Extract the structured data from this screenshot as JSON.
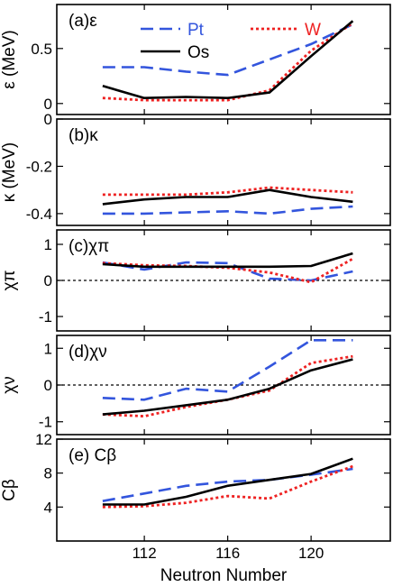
{
  "colors": {
    "Pt": "#3355dd",
    "W": "#ee2222",
    "Os": "#000000"
  },
  "legend": {
    "pt": "Pt",
    "w": "W",
    "os": "Os"
  },
  "xlabel": "Neutron Number",
  "xticks": [
    "112",
    "116",
    "120"
  ],
  "chart_data": [
    {
      "type": "line",
      "panel_label": "(a)ε",
      "ylabel": "ε (MeV)",
      "xlim": [
        107.8,
        123.8
      ],
      "ylim": [
        -0.1,
        0.9
      ],
      "yticks": [
        "0",
        "0.5"
      ],
      "zero_line": false,
      "series": [
        {
          "name": "Pt",
          "x": [
            110,
            112,
            114,
            116,
            118,
            120,
            122
          ],
          "values": [
            0.33,
            0.33,
            0.29,
            0.26,
            0.4,
            0.54,
            0.72
          ]
        },
        {
          "name": "W",
          "x": [
            110,
            112,
            114,
            116,
            118,
            120,
            122
          ],
          "values": [
            0.05,
            0.03,
            0.03,
            0.03,
            0.12,
            0.48,
            0.73
          ]
        },
        {
          "name": "Os",
          "x": [
            110,
            112,
            114,
            116,
            118,
            120,
            122
          ],
          "values": [
            0.16,
            0.05,
            0.06,
            0.05,
            0.1,
            0.43,
            0.75
          ]
        }
      ]
    },
    {
      "type": "line",
      "panel_label": "(b)κ",
      "ylabel": "κ (MeV)",
      "xlim": [
        107.8,
        123.8
      ],
      "ylim": [
        -0.45,
        0.0
      ],
      "yticks": [
        "0",
        "-0.2",
        "-0.4"
      ],
      "zero_line": false,
      "series": [
        {
          "name": "Pt",
          "x": [
            110,
            112,
            114,
            116,
            118,
            120,
            122
          ],
          "values": [
            -0.4,
            -0.4,
            -0.395,
            -0.39,
            -0.4,
            -0.38,
            -0.37
          ]
        },
        {
          "name": "W",
          "x": [
            110,
            112,
            114,
            116,
            118,
            120,
            122
          ],
          "values": [
            -0.32,
            -0.32,
            -0.32,
            -0.31,
            -0.29,
            -0.3,
            -0.31
          ]
        },
        {
          "name": "Os",
          "x": [
            110,
            112,
            114,
            116,
            118,
            120,
            122
          ],
          "values": [
            -0.36,
            -0.34,
            -0.33,
            -0.33,
            -0.3,
            -0.33,
            -0.35
          ]
        }
      ]
    },
    {
      "type": "line",
      "panel_label": "(c)χπ",
      "ylabel": "χπ",
      "xlim": [
        107.8,
        123.8
      ],
      "ylim": [
        -1.4,
        1.4
      ],
      "yticks": [
        "1",
        "0",
        "-1"
      ],
      "zero_line": true,
      "series": [
        {
          "name": "Pt",
          "x": [
            110,
            112,
            114,
            116,
            118,
            120,
            122
          ],
          "values": [
            0.5,
            0.3,
            0.5,
            0.48,
            0.05,
            0.0,
            0.25
          ]
        },
        {
          "name": "W",
          "x": [
            110,
            112,
            114,
            116,
            118,
            120,
            122
          ],
          "values": [
            0.48,
            0.42,
            0.4,
            0.35,
            0.22,
            -0.05,
            0.6
          ]
        },
        {
          "name": "Os",
          "x": [
            110,
            112,
            114,
            116,
            118,
            120,
            122
          ],
          "values": [
            0.45,
            0.38,
            0.38,
            0.38,
            0.38,
            0.4,
            0.75
          ]
        }
      ]
    },
    {
      "type": "line",
      "panel_label": "(d)χν",
      "ylabel": "χν",
      "xlim": [
        107.8,
        123.8
      ],
      "ylim": [
        -1.35,
        1.35
      ],
      "yticks": [
        "1",
        "0",
        "-1"
      ],
      "zero_line": true,
      "series": [
        {
          "name": "Pt",
          "x": [
            110,
            112,
            114,
            116,
            118,
            120,
            122
          ],
          "values": [
            -0.35,
            -0.4,
            -0.1,
            -0.18,
            0.5,
            1.22,
            1.22
          ]
        },
        {
          "name": "W",
          "x": [
            110,
            112,
            114,
            116,
            118,
            120,
            122
          ],
          "values": [
            -0.8,
            -0.85,
            -0.6,
            -0.4,
            -0.15,
            0.6,
            0.78
          ]
        },
        {
          "name": "Os",
          "x": [
            110,
            112,
            114,
            116,
            118,
            120,
            122
          ],
          "values": [
            -0.8,
            -0.7,
            -0.55,
            -0.4,
            -0.1,
            0.4,
            0.7
          ]
        }
      ]
    },
    {
      "type": "line",
      "panel_label": "(e) Cβ",
      "ylabel": "Cβ",
      "xlim": [
        107.8,
        123.8
      ],
      "ylim": [
        0,
        12
      ],
      "yticks": [
        "12",
        "8",
        "4"
      ],
      "zero_line": false,
      "series": [
        {
          "name": "Pt",
          "x": [
            110,
            112,
            114,
            116,
            118,
            120,
            122
          ],
          "values": [
            4.7,
            5.6,
            6.5,
            7.0,
            7.2,
            7.8,
            8.5
          ]
        },
        {
          "name": "W",
          "x": [
            110,
            112,
            114,
            116,
            118,
            120,
            122
          ],
          "values": [
            4.0,
            4.1,
            4.5,
            5.3,
            5.0,
            7.0,
            8.8
          ]
        },
        {
          "name": "Os",
          "x": [
            110,
            112,
            114,
            116,
            118,
            120,
            122
          ],
          "values": [
            4.3,
            4.3,
            5.2,
            6.5,
            7.2,
            7.9,
            9.7
          ]
        }
      ]
    }
  ]
}
